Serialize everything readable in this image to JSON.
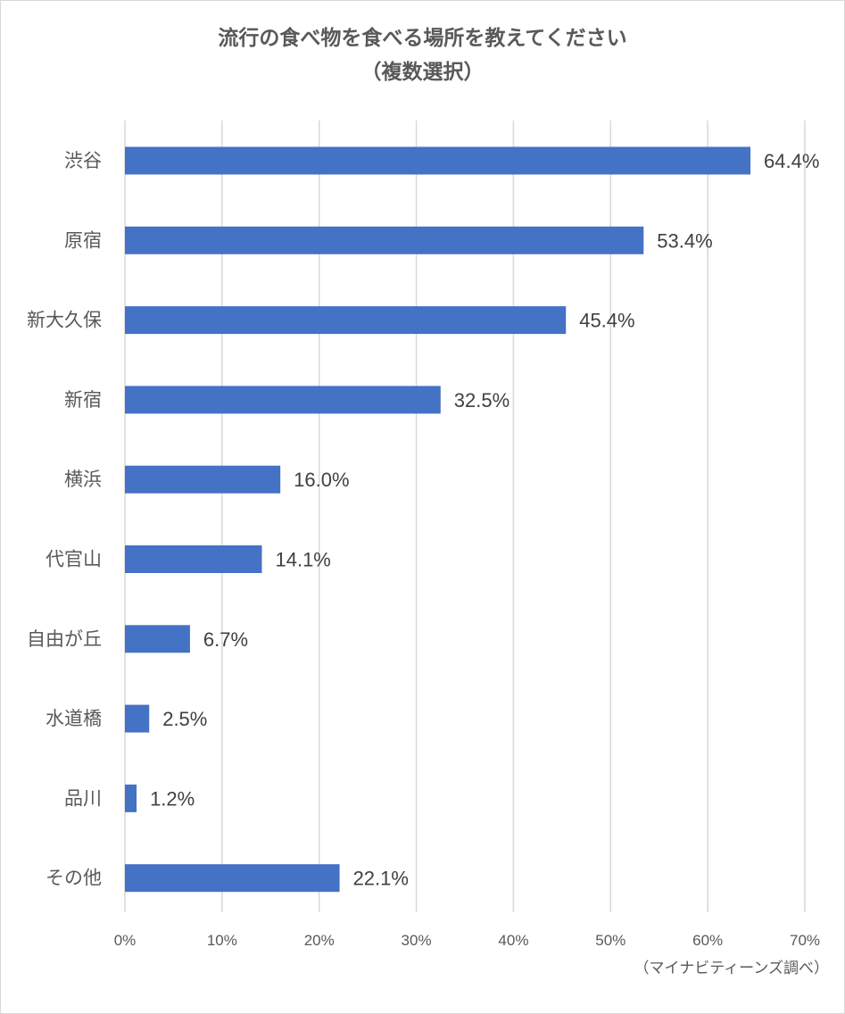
{
  "chart_data": {
    "type": "bar",
    "orientation": "horizontal",
    "title_line1": "流行の食べ物を食べる場所を教えてください",
    "title_line2": "（複数選択）",
    "categories": [
      "渋谷",
      "原宿",
      "新大久保",
      "新宿",
      "横浜",
      "代官山",
      "自由が丘",
      "水道橋",
      "品川",
      "その他"
    ],
    "values": [
      64.4,
      53.4,
      45.4,
      32.5,
      16.0,
      14.1,
      6.7,
      2.5,
      1.2,
      22.1
    ],
    "value_labels": [
      "64.4%",
      "53.4%",
      "45.4%",
      "32.5%",
      "16.0%",
      "14.1%",
      "6.7%",
      "2.5%",
      "1.2%",
      "22.1%"
    ],
    "x_ticks": [
      "0%",
      "10%",
      "20%",
      "30%",
      "40%",
      "50%",
      "60%",
      "70%"
    ],
    "xlim": [
      0,
      70
    ],
    "grid": true,
    "bar_color": "#4472c4",
    "grid_color": "#d9d9d9"
  },
  "source_note": "（マイナビティーンズ調べ）"
}
